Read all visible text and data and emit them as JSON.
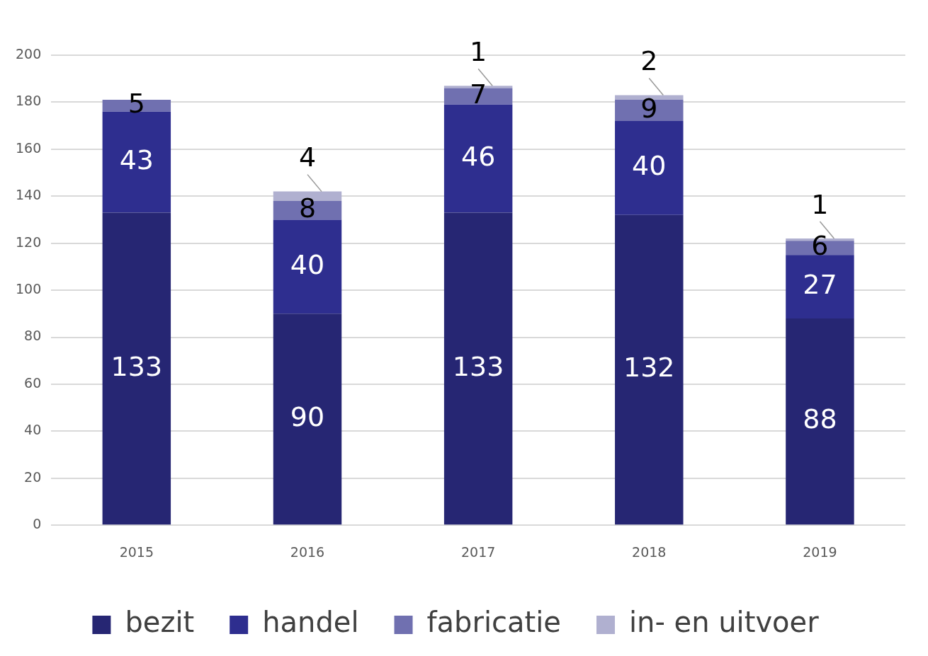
{
  "chart_data": {
    "type": "bar",
    "stacked": true,
    "categories": [
      "2015",
      "2016",
      "2017",
      "2018",
      "2019"
    ],
    "series": [
      {
        "name": "bezit",
        "color": "#262673",
        "values": [
          133,
          90,
          133,
          132,
          88
        ]
      },
      {
        "name": "handel",
        "color": "#2e2e8f",
        "values": [
          43,
          40,
          46,
          40,
          27
        ]
      },
      {
        "name": "fabricatie",
        "color": "#7070b0",
        "values": [
          5,
          8,
          7,
          9,
          6
        ]
      },
      {
        "name": "in- en uitvoer",
        "color": "#b0b0d0",
        "values": [
          null,
          4,
          1,
          2,
          1
        ]
      }
    ],
    "ylim": [
      0,
      200
    ],
    "yticks": [
      0,
      20,
      40,
      60,
      80,
      100,
      120,
      140,
      160,
      180,
      200
    ],
    "grid": "y",
    "legend": "bottom",
    "data_labels": true
  }
}
